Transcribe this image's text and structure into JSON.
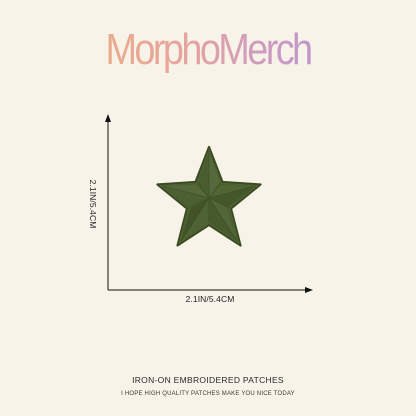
{
  "brand": {
    "name": "MorphoMerch"
  },
  "product": {
    "image": "green-star-embroidered-patch",
    "color": "#4a5e2c",
    "height_label": "2.1IN/5.4CM",
    "width_label": "2.1IN/5.4CM"
  },
  "footer": {
    "title": "IRON-ON EMBROIDERED PATCHES",
    "subtitle": "I HOPE HIGH QUALITY PATCHES MAKE YOU NICE TODAY"
  }
}
